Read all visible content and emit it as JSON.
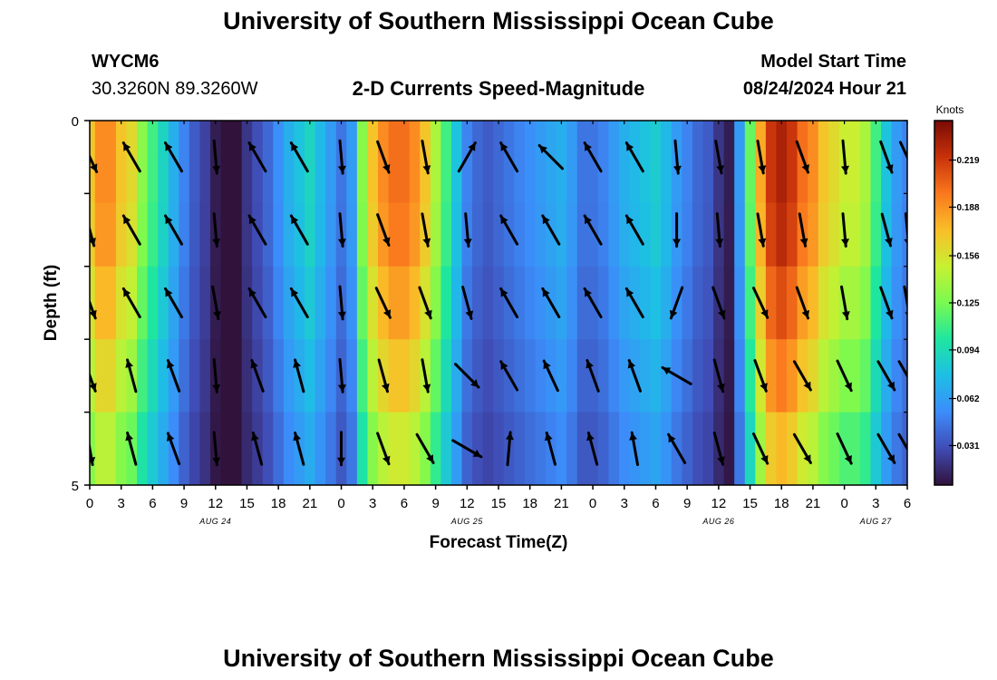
{
  "header": {
    "title": "University of Southern Mississippi Ocean Cube",
    "station_id": "WYCM6",
    "coordinates": "30.3260N  89.3260W",
    "plot_title": "2-D Currents Speed-Magnitude",
    "model_label": "Model Start Time",
    "model_time": "08/24/2024 Hour 21"
  },
  "footer": {
    "title": "University of Southern Mississippi Ocean Cube"
  },
  "chart_data": {
    "type": "heatmap",
    "title": "2-D Currents Speed-Magnitude",
    "xlabel": "Forecast Time(Z)",
    "ylabel": "Depth (ft)",
    "ylim": [
      0,
      5
    ],
    "y_tick_labels": [
      "0",
      "5"
    ],
    "x_tick_labels": [
      "0",
      "3",
      "6",
      "9",
      "12",
      "15",
      "18",
      "21",
      "0",
      "3",
      "6",
      "9",
      "12",
      "15",
      "18",
      "21",
      "0",
      "3",
      "6",
      "9",
      "12",
      "15",
      "18",
      "21",
      "0",
      "3",
      "6"
    ],
    "date_labels": [
      {
        "label": "AUG 24",
        "hour": 12
      },
      {
        "label": "AUG 25",
        "hour": 36
      },
      {
        "label": "AUG 26",
        "hour": 60
      },
      {
        "label": "AUG 27",
        "hour": 75
      }
    ],
    "x_range_hours": [
      0,
      78
    ],
    "colorbar": {
      "title": "Knots",
      "ticks": [
        0.031,
        0.062,
        0.094,
        0.125,
        0.156,
        0.188,
        0.219
      ],
      "range": [
        0.005,
        0.245
      ]
    },
    "time_hours": [
      0,
      1,
      2,
      3,
      4,
      5,
      6,
      7,
      8,
      9,
      10,
      11,
      12,
      13,
      14,
      15,
      16,
      17,
      18,
      19,
      20,
      21,
      22,
      23,
      24,
      25,
      26,
      27,
      28,
      29,
      30,
      31,
      32,
      33,
      34,
      35,
      36,
      37,
      38,
      39,
      40,
      41,
      42,
      43,
      44,
      45,
      46,
      47,
      48,
      49,
      50,
      51,
      52,
      53,
      54,
      55,
      56,
      57,
      58,
      59,
      60,
      61,
      62,
      63,
      64,
      65,
      66,
      67,
      68,
      69,
      70,
      71,
      72,
      73,
      74,
      75,
      76,
      77,
      78
    ],
    "depth_levels_ft": [
      0.25,
      0.75,
      1.5,
      2.5,
      3.5,
      4.5
    ],
    "speed_profile_knots": [
      0.17,
      0.19,
      0.19,
      0.17,
      0.16,
      0.13,
      0.11,
      0.09,
      0.07,
      0.05,
      0.035,
      0.025,
      0.01,
      0.005,
      0.005,
      0.02,
      0.03,
      0.04,
      0.055,
      0.07,
      0.08,
      0.09,
      0.075,
      0.06,
      0.045,
      0.06,
      0.13,
      0.17,
      0.19,
      0.2,
      0.2,
      0.19,
      0.17,
      0.14,
      0.11,
      0.08,
      0.05,
      0.04,
      0.035,
      0.04,
      0.045,
      0.05,
      0.055,
      0.06,
      0.065,
      0.07,
      0.06,
      0.045,
      0.045,
      0.05,
      0.06,
      0.07,
      0.075,
      0.08,
      0.085,
      0.075,
      0.06,
      0.05,
      0.04,
      0.035,
      0.02,
      0.01,
      0.06,
      0.12,
      0.18,
      0.22,
      0.23,
      0.22,
      0.2,
      0.19,
      0.17,
      0.16,
      0.15,
      0.15,
      0.14,
      0.11,
      0.08,
      0.06,
      0.05
    ],
    "depth_factors": [
      1.0,
      1.0,
      0.98,
      0.92,
      0.85,
      0.76
    ],
    "vectors": {
      "times": [
        0,
        4,
        8,
        12,
        16,
        20,
        24,
        28,
        32,
        36,
        40,
        44,
        48,
        52,
        56,
        60,
        64,
        68,
        72,
        76,
        78
      ],
      "depths_ft": [
        0.5,
        1.5,
        2.5,
        3.5,
        4.5
      ],
      "direction_deg": [
        [
          155,
          330,
          330,
          175,
          330,
          330,
          175,
          160,
          170,
          30,
          330,
          315,
          330,
          330,
          175,
          170,
          170,
          160,
          175,
          160,
          155
        ],
        [
          165,
          330,
          330,
          175,
          330,
          330,
          175,
          160,
          170,
          175,
          330,
          330,
          330,
          330,
          180,
          175,
          170,
          170,
          175,
          165,
          175
        ],
        [
          160,
          330,
          330,
          170,
          330,
          330,
          175,
          155,
          160,
          165,
          330,
          330,
          330,
          330,
          200,
          160,
          155,
          160,
          170,
          160,
          170
        ],
        [
          160,
          345,
          340,
          175,
          340,
          345,
          175,
          165,
          170,
          135,
          330,
          335,
          340,
          340,
          300,
          165,
          160,
          150,
          155,
          150,
          150
        ],
        [
          170,
          345,
          340,
          175,
          345,
          345,
          180,
          160,
          150,
          120,
          5,
          345,
          345,
          350,
          330,
          165,
          155,
          150,
          155,
          150,
          150
        ]
      ]
    }
  }
}
